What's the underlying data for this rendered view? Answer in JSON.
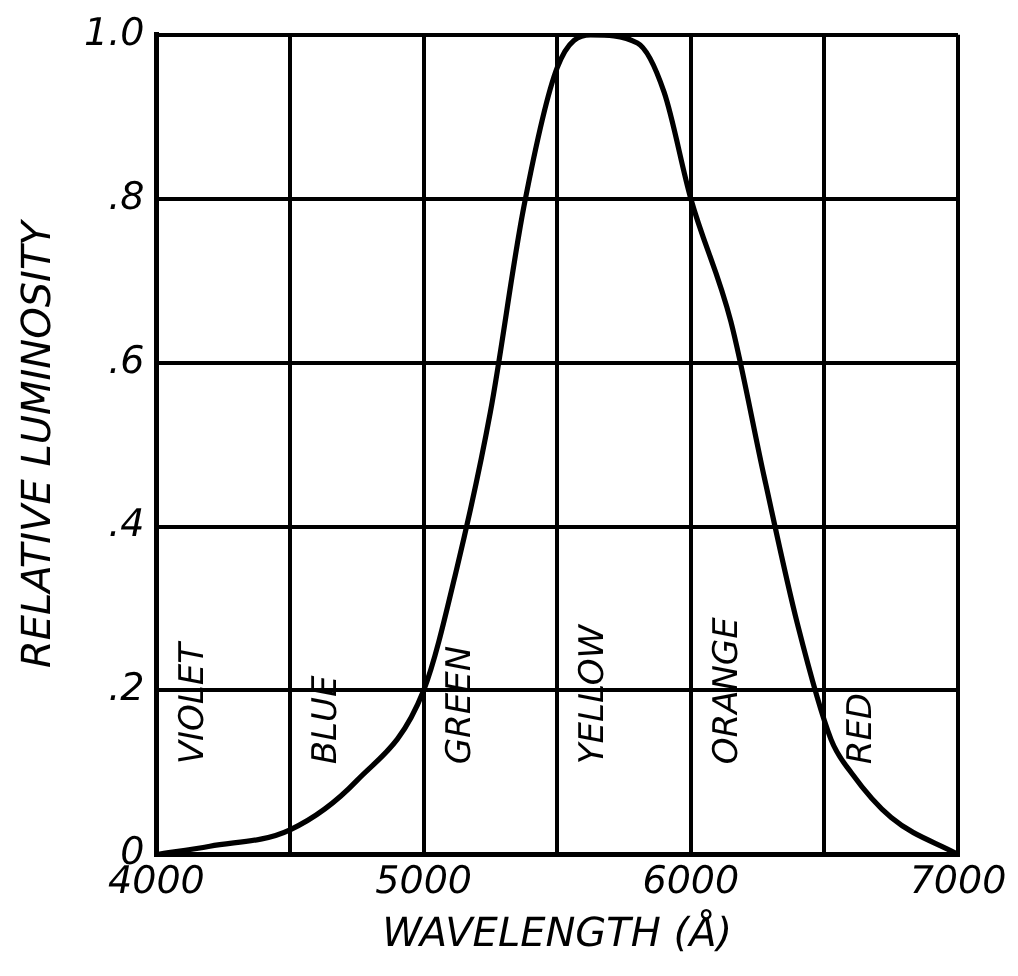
{
  "chart_data": {
    "type": "line",
    "xlabel": "WAVELENGTH (Å)",
    "ylabel": "RELATIVE LUMINOSITY",
    "x": [
      4000,
      4200,
      4500,
      4750,
      5000,
      5125,
      5250,
      5375,
      5500,
      5625,
      5800,
      5900,
      6000,
      6150,
      6275,
      6400,
      6525,
      6600,
      6750,
      7000
    ],
    "series": [
      {
        "color": "#000000",
        "values": [
          0,
          0.01,
          0.03,
          0.09,
          0.2,
          0.35,
          0.54,
          0.79,
          0.96,
          1.0,
          0.99,
          0.93,
          0.8,
          0.65,
          0.46,
          0.28,
          0.14,
          0.1,
          0.045,
          0
        ]
      }
    ],
    "xlim": [
      4000,
      7000
    ],
    "xticks": [
      4000,
      {
        "value": 4500,
        "label": null
      },
      5000,
      {
        "value": 5500,
        "label": null
      },
      6000,
      {
        "value": 6500,
        "label": null
      },
      7000
    ],
    "ylim": [
      0,
      1
    ],
    "yticks": [
      0,
      {
        "value": 0.2,
        "label": ".2"
      },
      {
        "value": 0.4,
        "label": ".4"
      },
      {
        "value": 0.6,
        "label": ".6"
      },
      {
        "value": 0.8,
        "label": ".8"
      },
      {
        "value": 1,
        "label": "1.0"
      }
    ],
    "annotations": [
      "VIOLET",
      "BLUE",
      "GREEN",
      "YELLOW",
      "ORANGE",
      "RED"
    ],
    "grid": true,
    "legend": false,
    "marker": "none",
    "line_style": "solid"
  }
}
